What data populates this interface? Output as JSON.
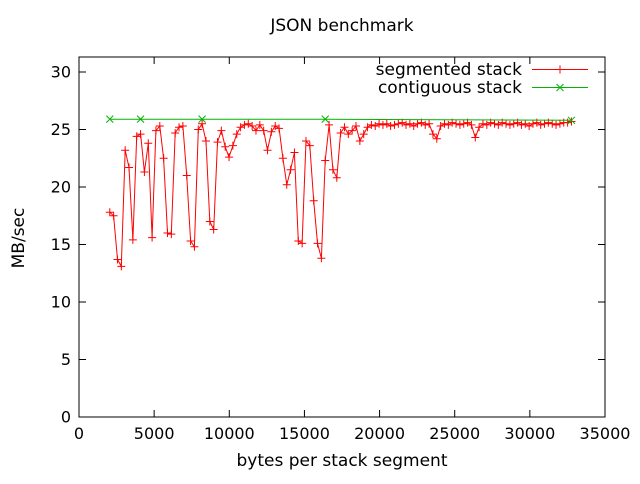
{
  "chart_data": {
    "type": "line",
    "title": "JSON benchmark",
    "xlabel": "bytes per stack segment",
    "ylabel": "MB/sec",
    "xlim": [
      0,
      35000
    ],
    "ylim": [
      0,
      31.3
    ],
    "x_ticks": [
      0,
      5000,
      10000,
      15000,
      20000,
      25000,
      30000,
      35000
    ],
    "y_ticks": [
      0,
      5,
      10,
      15,
      20,
      25,
      30
    ],
    "grid": false,
    "legend_position": "top-right-inside",
    "background_color": "#ffffff",
    "axis_color": "#000000",
    "series": [
      {
        "name": "segmented stack",
        "color": "#ff0000",
        "marker": "plus",
        "x": [
          2048,
          2304,
          2560,
          2816,
          3072,
          3328,
          3584,
          3840,
          4096,
          4352,
          4608,
          4864,
          5120,
          5376,
          5632,
          5888,
          6144,
          6400,
          6656,
          6912,
          7168,
          7424,
          7680,
          7936,
          8192,
          8448,
          8704,
          8960,
          9216,
          9472,
          9728,
          9984,
          10240,
          10496,
          10752,
          11008,
          11264,
          11520,
          11776,
          12032,
          12288,
          12544,
          12800,
          13056,
          13312,
          13568,
          13824,
          14080,
          14336,
          14592,
          14848,
          15104,
          15360,
          15616,
          15872,
          16128,
          16384,
          16640,
          16896,
          17152,
          17408,
          17664,
          17920,
          18176,
          18432,
          18688,
          18944,
          19200,
          19456,
          19712,
          19968,
          20224,
          20480,
          20736,
          20992,
          21248,
          21504,
          21760,
          22016,
          22272,
          22528,
          22784,
          23040,
          23296,
          23552,
          23808,
          24064,
          24320,
          24576,
          24832,
          25088,
          25344,
          25600,
          25856,
          26112,
          26368,
          26624,
          26880,
          27136,
          27392,
          27648,
          27904,
          28160,
          28416,
          28672,
          28928,
          29184,
          29440,
          29696,
          29952,
          30208,
          30464,
          30720,
          30976,
          31232,
          31488,
          31744,
          32000,
          32256,
          32512,
          32768
        ],
        "y": [
          17.8,
          17.5,
          13.7,
          13.1,
          23.2,
          21.7,
          15.4,
          24.4,
          24.6,
          21.3,
          23.8,
          15.6,
          24.9,
          25.3,
          22.5,
          16.0,
          15.9,
          24.7,
          25.2,
          25.3,
          21.0,
          15.3,
          14.8,
          25.0,
          25.5,
          24.0,
          17.0,
          16.3,
          23.9,
          24.9,
          23.5,
          22.6,
          23.6,
          24.6,
          25.2,
          25.4,
          25.5,
          25.3,
          24.9,
          25.4,
          24.9,
          23.2,
          24.8,
          25.3,
          25.1,
          22.5,
          20.2,
          21.5,
          23.0,
          15.3,
          15.1,
          24.0,
          23.6,
          18.8,
          15.1,
          13.8,
          22.3,
          25.4,
          21.5,
          20.8,
          24.7,
          25.2,
          24.6,
          24.9,
          25.3,
          24.0,
          24.6,
          25.2,
          25.4,
          25.3,
          25.5,
          25.4,
          25.5,
          25.3,
          25.4,
          25.5,
          25.6,
          25.4,
          25.5,
          25.3,
          25.5,
          25.6,
          25.4,
          25.5,
          24.6,
          24.2,
          25.3,
          25.5,
          25.4,
          25.6,
          25.5,
          25.4,
          25.5,
          25.6,
          25.4,
          24.3,
          25.2,
          25.5,
          25.4,
          25.6,
          25.5,
          25.4,
          25.6,
          25.5,
          25.4,
          25.5,
          25.6,
          25.4,
          25.5,
          25.3,
          25.5,
          25.6,
          25.4,
          25.5,
          25.6,
          25.5,
          25.4,
          25.5,
          25.6,
          25.6,
          25.7
        ]
      },
      {
        "name": "contiguous stack",
        "color": "#00b400",
        "marker": "cross",
        "x": [
          2048,
          4096,
          8192,
          16384,
          32768
        ],
        "y": [
          25.9,
          25.9,
          25.9,
          25.9,
          25.8
        ]
      }
    ]
  }
}
